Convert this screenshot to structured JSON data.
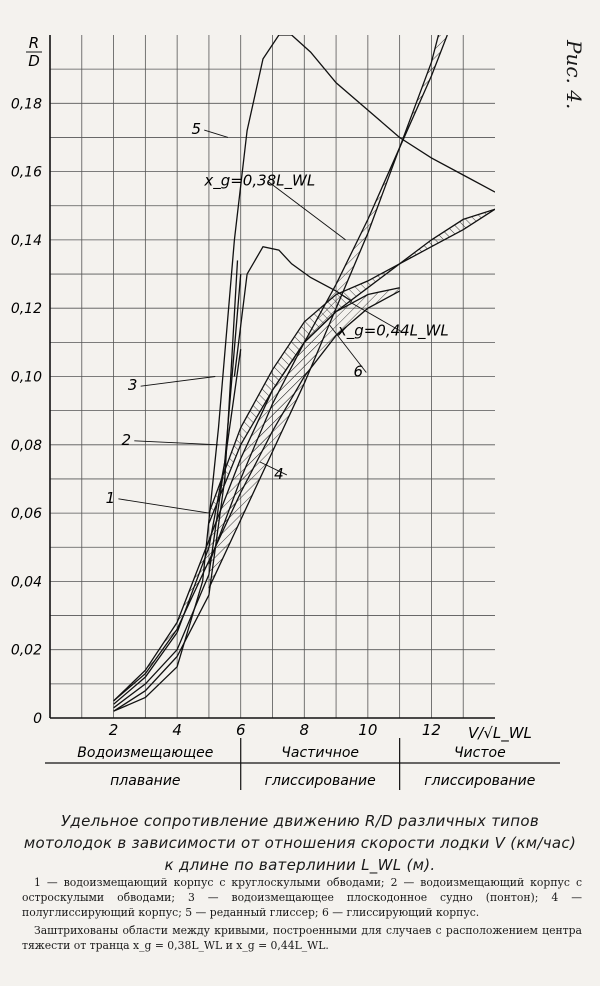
{
  "page": {
    "side_label": "Рис. 4.",
    "caption": "Удельное сопротивление движению R/D различных типов мотолодок в зависимости от отношения скорости лодки V (км/час) к длине по ватерлинии L_WL (м).",
    "legend_paragraph1": "1 — водоизмещающий корпус с круглоскулыми обводами; 2 — водоизмещающий корпус с остроскулыми обводами; 3 — водоизмещающее плоскодонное судно (понтон); 4 — полуглиссирующий корпус; 5 — реданный глиссер; 6 — глиссирующий корпус.",
    "legend_paragraph2": "Заштрихованы области между кривыми, построенными для случаев с расположением центра тяжести от транца x_g = 0,38L_WL и x_g = 0,44L_WL."
  },
  "chart_data": {
    "type": "line",
    "title": "",
    "ylabel": "R/D",
    "xlabel": "V/√L_WL",
    "xlim": [
      0,
      14
    ],
    "ylim": [
      0,
      0.2
    ],
    "x_ticks": [
      2,
      4,
      6,
      8,
      10,
      12
    ],
    "y_ticks": [
      0,
      0.02,
      0.04,
      0.06,
      0.08,
      0.1,
      0.12,
      0.14,
      0.16,
      0.18
    ],
    "y_tick_labels": [
      "0",
      "0,02",
      "0,04",
      "0,06",
      "0,08",
      "0,10",
      "0,12",
      "0,14",
      "0,16",
      "0,18"
    ],
    "grid": true,
    "regimes": [
      {
        "line1": "Водоизмещающее",
        "line2": "плавание",
        "x_range": [
          0,
          6
        ]
      },
      {
        "line1": "Частичное",
        "line2": "глиссирование",
        "x_range": [
          6,
          11
        ]
      },
      {
        "line1": "Чистое",
        "line2": "глиссирование",
        "x_range": [
          11,
          14
        ]
      }
    ],
    "series": [
      {
        "name": "1",
        "x": [
          2,
          3,
          4,
          5,
          5.5,
          6
        ],
        "y": [
          0.004,
          0.012,
          0.025,
          0.05,
          0.075,
          0.108
        ]
      },
      {
        "name": "2",
        "x": [
          2,
          3,
          4,
          5,
          5.5,
          6
        ],
        "y": [
          0.003,
          0.01,
          0.02,
          0.042,
          0.075,
          0.13
        ]
      },
      {
        "name": "3",
        "x": [
          2,
          3,
          4,
          5,
          5.5,
          5.9
        ],
        "y": [
          0.002,
          0.008,
          0.018,
          0.036,
          0.07,
          0.134
        ]
      },
      {
        "name": "5",
        "x": [
          2,
          3,
          4,
          4.8,
          5.3,
          5.8,
          6.2,
          6.7,
          7.2,
          7.6,
          8.2,
          9,
          10,
          11,
          12,
          13,
          14
        ],
        "y": [
          0.002,
          0.006,
          0.015,
          0.04,
          0.085,
          0.14,
          0.172,
          0.193,
          0.2,
          0.2,
          0.195,
          0.186,
          0.178,
          0.17,
          0.164,
          0.159,
          0.154
        ]
      },
      {
        "name": "",
        "x": [
          5.8,
          6.2,
          6.7,
          7.2,
          7.6,
          8.2,
          9,
          9.5
        ],
        "y": [
          0.1,
          0.13,
          0.138,
          0.137,
          0.133,
          0.129,
          0.125,
          0.122
        ]
      },
      {
        "name": "4 (x_g=0,38L_WL)",
        "x": [
          2,
          3,
          4,
          5,
          6,
          7,
          8,
          9,
          10,
          11
        ],
        "y": [
          0.005,
          0.013,
          0.026,
          0.046,
          0.066,
          0.084,
          0.1,
          0.112,
          0.12,
          0.125
        ]
      },
      {
        "name": "4 (x_g=0,44L_WL)",
        "x": [
          2,
          3,
          4,
          5,
          6,
          7,
          8,
          9,
          10,
          11
        ],
        "y": [
          0.005,
          0.014,
          0.028,
          0.052,
          0.076,
          0.096,
          0.11,
          0.119,
          0.124,
          0.126
        ]
      },
      {
        "name": "6 (x_g=0,38L_WL)",
        "x": [
          5,
          6,
          7,
          8,
          9,
          10,
          11,
          12,
          13,
          14
        ],
        "y": [
          0.06,
          0.085,
          0.102,
          0.116,
          0.124,
          0.128,
          0.133,
          0.138,
          0.143,
          0.149
        ]
      },
      {
        "name": "6 (x_g=0,44L_WL)",
        "x": [
          5,
          6,
          7,
          8,
          9,
          10,
          11,
          12,
          13,
          14
        ],
        "y": [
          0.057,
          0.08,
          0.096,
          0.11,
          0.119,
          0.126,
          0.133,
          0.14,
          0.146,
          0.149
        ]
      },
      {
        "name": "x_g=0,38L_WL",
        "x": [
          5,
          6,
          7,
          8,
          9,
          10,
          11,
          12,
          12.5
        ],
        "y": [
          0.038,
          0.058,
          0.078,
          0.098,
          0.12,
          0.142,
          0.167,
          0.192,
          0.21
        ]
      },
      {
        "name": "x_g=0,44L_WL",
        "x": [
          5,
          6,
          7,
          8,
          9,
          10,
          11,
          12,
          12.5
        ],
        "y": [
          0.045,
          0.07,
          0.092,
          0.11,
          0.127,
          0.146,
          0.167,
          0.188,
          0.2
        ]
      }
    ],
    "annotations": [
      {
        "text": "1",
        "x": 1.9,
        "y": 0.063
      },
      {
        "text": "2",
        "x": 2.4,
        "y": 0.08
      },
      {
        "text": "3",
        "x": 2.6,
        "y": 0.096
      },
      {
        "text": "5",
        "x": 4.6,
        "y": 0.171
      },
      {
        "text": "4",
        "x": 7.2,
        "y": 0.07
      },
      {
        "text": "6",
        "x": 9.7,
        "y": 0.1
      },
      {
        "text": "x_g=0,38L_WL",
        "x": 6.6,
        "y": 0.156
      },
      {
        "text": "x_g=0,44L_WL",
        "x": 10.8,
        "y": 0.112
      }
    ]
  }
}
